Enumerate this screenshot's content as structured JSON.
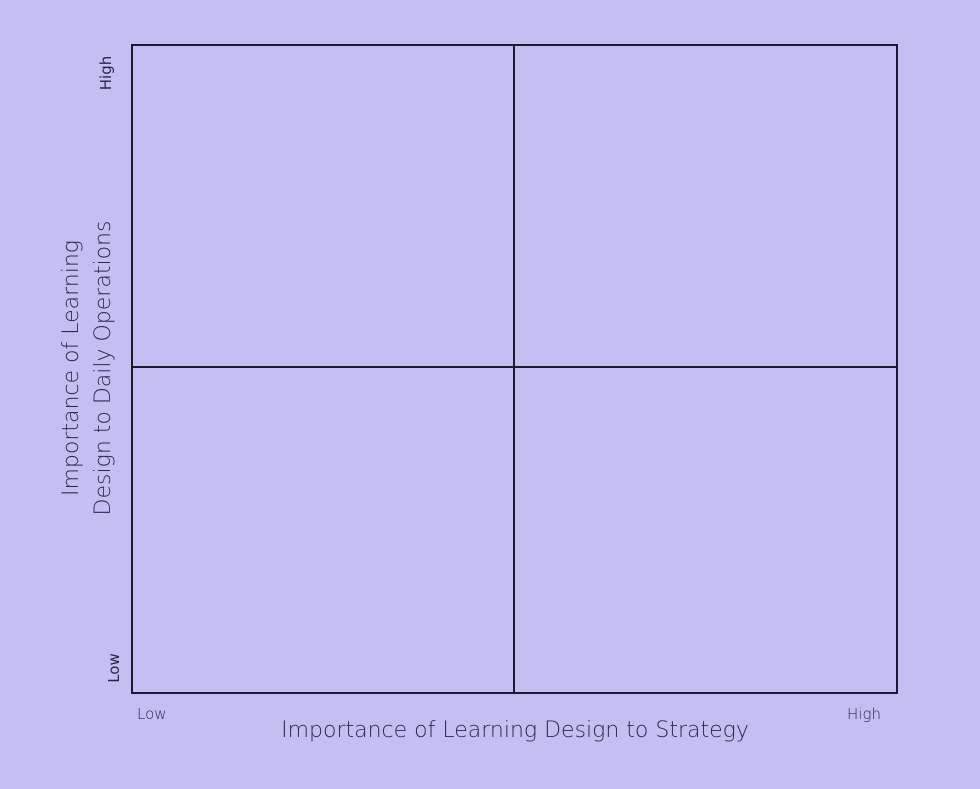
{
  "matrix": {
    "x_axis": {
      "title": "Importance of Learning Design to Strategy",
      "low_label": "Low",
      "high_label": "High"
    },
    "y_axis": {
      "title_line1": "Importance of Learning",
      "title_line2": "Design to Daily Operations",
      "low_label": "Low",
      "high_label": "High"
    }
  },
  "colors": {
    "background": "#c3bff0",
    "lines": "#1e1a2e",
    "text": "#2e2850"
  }
}
